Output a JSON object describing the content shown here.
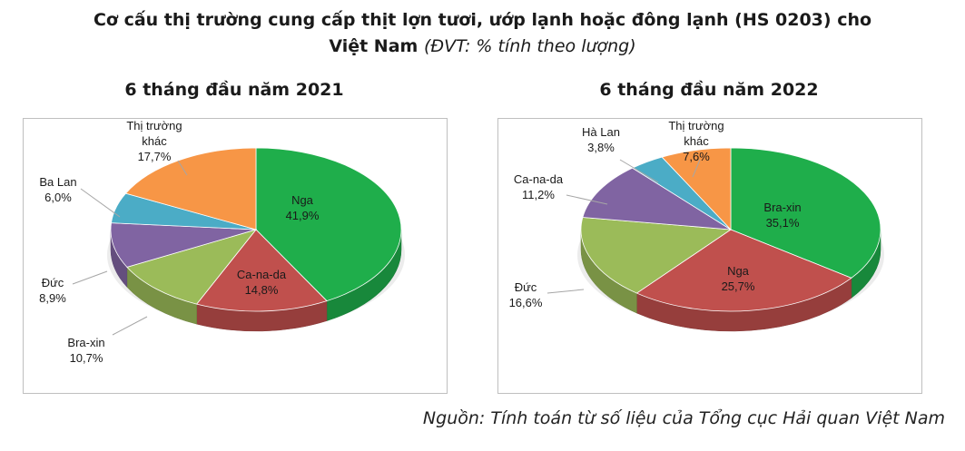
{
  "title": {
    "line1": "Cơ cấu thị trường cung cấp thịt lợn tươi, ướp lạnh hoặc đông lạnh (HS 0203) cho",
    "line2_bold": "Việt Nam",
    "line2_unit": "(ĐVT: % tính theo lượng)"
  },
  "source": "Nguồn: Tính toán từ số liệu của Tổng cục Hải quan Việt Nam",
  "chart_data": [
    {
      "type": "pie",
      "title": "6 tháng đầu năm 2021",
      "slices": [
        {
          "name": "Nga",
          "value": 41.9,
          "label": "41,9%",
          "color": "#1fae4b",
          "label_lines": [
            "Nga"
          ]
        },
        {
          "name": "Ca-na-da",
          "value": 14.8,
          "label": "14,8%",
          "color": "#c0504d",
          "label_lines": [
            "Ca-na-da"
          ]
        },
        {
          "name": "Bra-xin",
          "value": 10.7,
          "label": "10,7%",
          "color": "#9bbb59",
          "label_lines": [
            "Bra-xin"
          ]
        },
        {
          "name": "Đức",
          "value": 8.9,
          "label": "8,9%",
          "color": "#8064a2",
          "label_lines": [
            "Đức"
          ]
        },
        {
          "name": "Ba Lan",
          "value": 6.0,
          "label": "6,0%",
          "color": "#4bacc6",
          "label_lines": [
            "Ba Lan"
          ]
        },
        {
          "name": "Thị trường khác",
          "value": 17.7,
          "label": "17,7%",
          "color": "#f79646",
          "label_lines": [
            "Thị trường",
            "khác"
          ]
        }
      ]
    },
    {
      "type": "pie",
      "title": "6 tháng đầu năm 2022",
      "slices": [
        {
          "name": "Bra-xin",
          "value": 35.1,
          "label": "35,1%",
          "color": "#1fae4b",
          "label_lines": [
            "Bra-xin"
          ]
        },
        {
          "name": "Nga",
          "value": 25.7,
          "label": "25,7%",
          "color": "#c0504d",
          "label_lines": [
            "Nga"
          ]
        },
        {
          "name": "Đức",
          "value": 16.6,
          "label": "16,6%",
          "color": "#9bbb59",
          "label_lines": [
            "Đức"
          ]
        },
        {
          "name": "Ca-na-da",
          "value": 11.2,
          "label": "11,2%",
          "color": "#8064a2",
          "label_lines": [
            "Ca-na-da"
          ]
        },
        {
          "name": "Hà Lan",
          "value": 3.8,
          "label": "3,8%",
          "color": "#4bacc6",
          "label_lines": [
            "Hà Lan"
          ]
        },
        {
          "name": "Thị trường khác",
          "value": 7.6,
          "label": "7,6%",
          "color": "#f79646",
          "label_lines": [
            "Thị trường",
            "khác"
          ]
        }
      ]
    }
  ]
}
